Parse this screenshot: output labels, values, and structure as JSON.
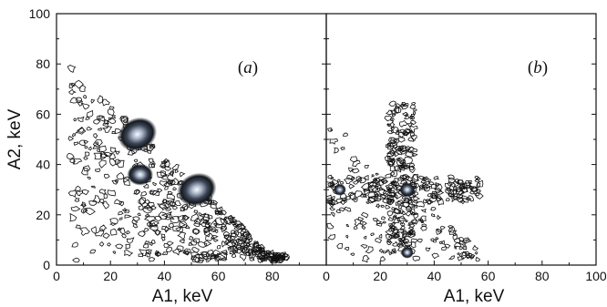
{
  "chart_data": [
    {
      "type": "heatmap",
      "panel_label": "(a)",
      "panel_letter": "a",
      "xlabel": "A1, keV",
      "ylabel": "A2, keV",
      "xlim": [
        0,
        100
      ],
      "ylim": [
        0,
        100
      ],
      "x_ticks": [
        "0",
        "20",
        "40",
        "60",
        "80"
      ],
      "y_ticks": [
        "0",
        "20",
        "40",
        "60",
        "80",
        "100"
      ],
      "grid": false,
      "peaks": [
        {
          "x": 30,
          "y": 52,
          "intensity": 1.0
        },
        {
          "x": 52,
          "y": 30,
          "intensity": 1.0
        },
        {
          "x": 31,
          "y": 36,
          "intensity": 0.6
        }
      ],
      "contour_region": "scattered contour lines along diagonal band A1 + A2 ≈ 80 keV and around peaks"
    },
    {
      "type": "heatmap",
      "panel_label": "(b)",
      "panel_letter": "b",
      "xlabel": "A1, keV",
      "ylabel": "",
      "xlim": [
        0,
        100
      ],
      "ylim": [
        0,
        100
      ],
      "x_ticks": [
        "0",
        "20",
        "40",
        "60",
        "80",
        "100"
      ],
      "y_ticks": [],
      "grid": false,
      "peaks": [
        {
          "x": 30,
          "y": 30,
          "intensity": 0.7
        },
        {
          "x": 5,
          "y": 30,
          "intensity": 0.5
        },
        {
          "x": 30,
          "y": 5,
          "intensity": 0.5
        }
      ],
      "contour_region": "contour lines along A1 ≈ 30 keV and A2 ≈ 30 keV bands"
    }
  ],
  "colors": {
    "contour": "#111111",
    "peak_core": "#f4f7fb",
    "peak_mid": "#8a97ad",
    "peak_outer": "#2a3140"
  }
}
